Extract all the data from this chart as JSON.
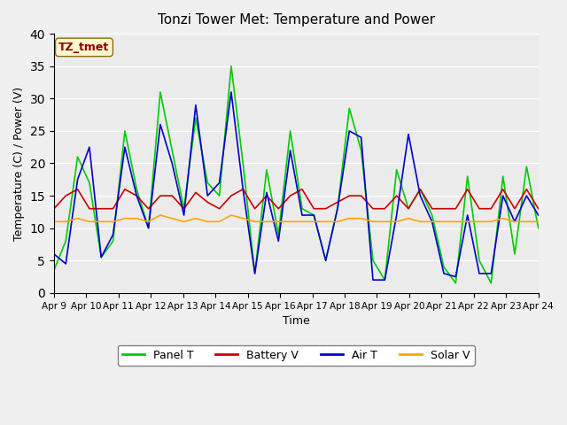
{
  "title": "Tonzi Tower Met: Temperature and Power",
  "xlabel": "Time",
  "ylabel": "Temperature (C) / Power (V)",
  "ylim": [
    0,
    40
  ],
  "yticks": [
    0,
    5,
    10,
    15,
    20,
    25,
    30,
    35,
    40
  ],
  "x_labels": [
    "Apr 9",
    "Apr 10",
    "Apr 11",
    "Apr 12",
    "Apr 13",
    "Apr 14",
    "Apr 15",
    "Apr 16",
    "Apr 17",
    "Apr 18",
    "Apr 19",
    "Apr 20",
    "Apr 21",
    "Apr 22",
    "Apr 23",
    "Apr 24"
  ],
  "watermark_text": "TZ_tmet",
  "watermark_color": "#8B0000",
  "watermark_bg": "#FFFACD",
  "bg_color": "#EBEBEB",
  "line_colors": {
    "panel_t": "#00CC00",
    "battery_v": "#CC0000",
    "air_t": "#0000CC",
    "solar_v": "#FFA500"
  },
  "legend_labels": [
    "Panel T",
    "Battery V",
    "Air T",
    "Solar V"
  ],
  "panel_t": [
    3.5,
    8,
    21,
    17,
    5.5,
    8,
    25,
    16,
    10,
    31,
    22,
    13,
    27,
    17,
    15,
    35,
    20,
    3,
    19,
    9,
    25,
    13,
    12,
    5,
    13,
    28.5,
    22,
    5,
    2,
    19,
    13,
    16,
    12,
    4,
    1.5,
    18,
    5,
    1.5,
    18,
    6,
    19.5,
    10
  ],
  "battery_v": [
    13,
    15,
    16,
    13,
    13,
    13,
    16,
    15,
    13,
    15,
    15,
    13,
    15.5,
    14,
    13,
    15,
    16,
    13,
    15,
    13,
    15,
    16,
    13,
    13,
    14,
    15,
    15,
    13,
    13,
    15,
    13,
    16,
    13,
    13,
    13,
    16,
    13,
    13,
    16,
    13,
    16,
    13
  ],
  "air_t": [
    6,
    4.5,
    17.5,
    22.5,
    5.5,
    9,
    22.5,
    15,
    10,
    26,
    20,
    12,
    29,
    15,
    17,
    31,
    16,
    3,
    15.5,
    8,
    22,
    12,
    12,
    5,
    13,
    25,
    24,
    2,
    2,
    12,
    24.5,
    15,
    11,
    3,
    2.5,
    12,
    3,
    3,
    15,
    11,
    15,
    12
  ],
  "solar_v": [
    11,
    11,
    11.5,
    11,
    11,
    11,
    11.5,
    11.5,
    11,
    12,
    11.5,
    11,
    11.5,
    11,
    11,
    12,
    11.5,
    11,
    11,
    11,
    11,
    11,
    11,
    11,
    11,
    11.5,
    11.5,
    11,
    11,
    11,
    11.5,
    11,
    11,
    11,
    11,
    11,
    11,
    11,
    11.5,
    11,
    11,
    11
  ]
}
